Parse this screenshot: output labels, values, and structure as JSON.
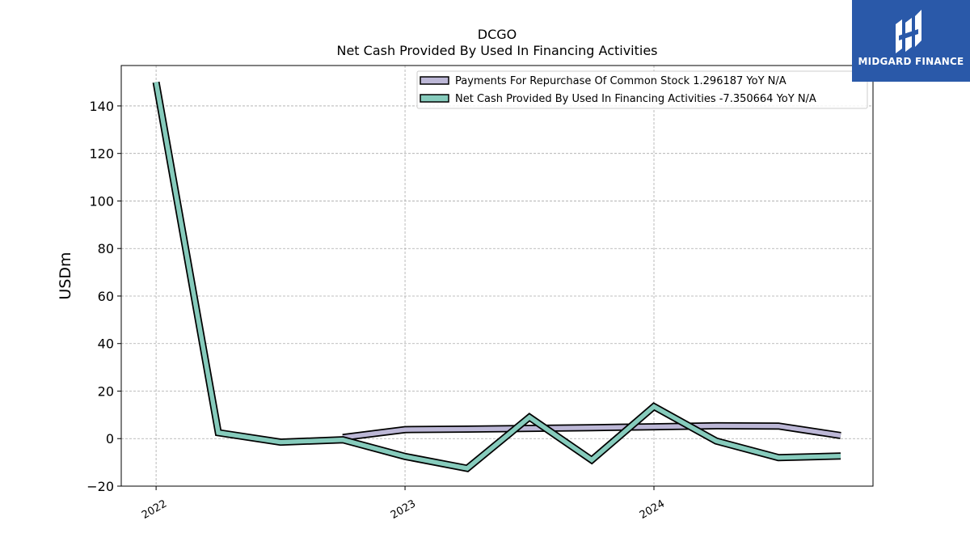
{
  "chart_data": {
    "type": "line",
    "title": "DCGO",
    "subtitle": "Net Cash Provided By Used In Financing Activities",
    "ylabel": "USDm",
    "xlabel": "",
    "ylim": [
      -20,
      157
    ],
    "xlim": [
      2021.86,
      2024.88
    ],
    "x_ticks": [
      {
        "label": "2022",
        "x": 2022.0
      },
      {
        "label": "2023",
        "x": 2023.0
      },
      {
        "label": "2024",
        "x": 2024.0
      }
    ],
    "y_ticks": [
      -20,
      0,
      20,
      40,
      60,
      80,
      100,
      120,
      140
    ],
    "grid": true,
    "legend_position": "top-right",
    "series": [
      {
        "name": "Payments For Repurchase Of Common Stock",
        "legend_label": "Payments For Repurchase Of Common Stock  1.296187 YoY N/A",
        "color": "#bcb7d6",
        "x": [
          2022.75,
          2023.0,
          2023.25,
          2023.5,
          2023.75,
          2024.0,
          2024.25,
          2024.5,
          2024.75
        ],
        "values": [
          0.5,
          3.8,
          4.0,
          4.3,
          4.6,
          5.0,
          5.4,
          5.3,
          1.3
        ]
      },
      {
        "name": "Net Cash Provided By Used In Financing Activities",
        "legend_label": "Net Cash Provided By Used In Financing Activities  -7.350664 YoY N/A",
        "color": "#86cbbc",
        "x": [
          2022.0,
          2022.25,
          2022.5,
          2022.75,
          2023.0,
          2023.25,
          2023.5,
          2023.75,
          2024.0,
          2024.25,
          2024.5,
          2024.75
        ],
        "values": [
          150,
          2.5,
          -1.5,
          -0.5,
          -7.5,
          -12.5,
          9,
          -9,
          13.5,
          -1,
          -8,
          -7.35
        ]
      }
    ]
  },
  "logo": {
    "text": "MIDGARD FINANCE",
    "color": "#2a59a9"
  }
}
